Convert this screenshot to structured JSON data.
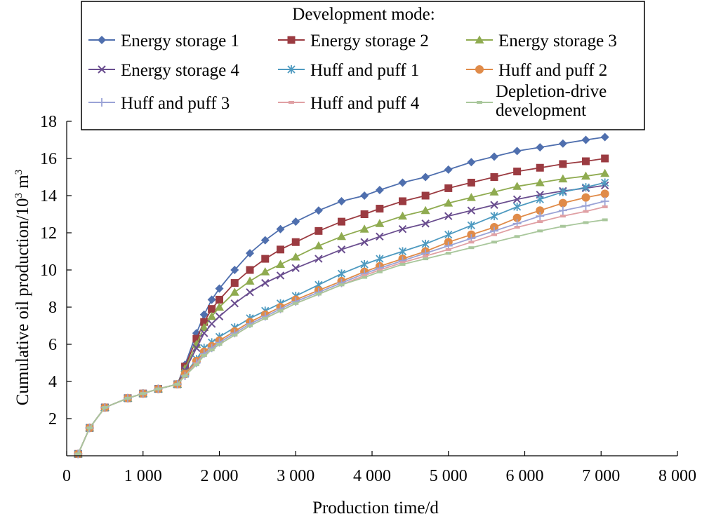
{
  "chart_data": {
    "type": "line",
    "xlabel": "Production time/d",
    "ylabel_main": "Cumulative oil production/10",
    "ylabel_sup": "3",
    "ylabel_tail": " m",
    "ylabel_sup2": "3",
    "xlim": [
      0,
      8000
    ],
    "ylim": [
      0,
      18
    ],
    "x_ticks": [
      0,
      1000,
      2000,
      3000,
      4000,
      5000,
      6000,
      7000,
      8000
    ],
    "x_tick_labels": [
      "0",
      "1 000",
      "2 000",
      "3 000",
      "4 000",
      "5 000",
      "6 000",
      "7 000",
      "8 000"
    ],
    "y_ticks": [
      2,
      4,
      6,
      8,
      10,
      12,
      14,
      16,
      18
    ],
    "y_tick_labels": [
      "2",
      "4",
      "6",
      "8",
      "10",
      "12",
      "14",
      "16",
      "18"
    ],
    "grid": false,
    "legend_title": "Development mode:",
    "legend_placement": "top",
    "series": [
      {
        "name": "Energy storage 1",
        "color": "#4F6FAE",
        "marker": "diamond",
        "x": [
          150,
          300,
          500,
          800,
          1000,
          1200,
          1450,
          1550,
          1700,
          1800,
          1900,
          2000,
          2200,
          2400,
          2600,
          2800,
          3000,
          3300,
          3600,
          3900,
          4100,
          4400,
          4700,
          5000,
          5300,
          5600,
          5900,
          6200,
          6500,
          6800,
          7050
        ],
        "y": [
          0.1,
          1.5,
          2.6,
          3.1,
          3.35,
          3.6,
          3.85,
          4.9,
          6.6,
          7.6,
          8.4,
          9.0,
          10.0,
          10.9,
          11.6,
          12.2,
          12.6,
          13.2,
          13.7,
          14.0,
          14.3,
          14.7,
          15.0,
          15.4,
          15.8,
          16.1,
          16.4,
          16.6,
          16.8,
          17.0,
          17.15
        ]
      },
      {
        "name": "Energy storage 2",
        "color": "#9B3B41",
        "marker": "square",
        "x": [
          150,
          300,
          500,
          800,
          1000,
          1200,
          1450,
          1550,
          1700,
          1800,
          1900,
          2000,
          2200,
          2400,
          2600,
          2800,
          3000,
          3300,
          3600,
          3900,
          4100,
          4400,
          4700,
          5000,
          5300,
          5600,
          5900,
          6200,
          6500,
          6800,
          7050
        ],
        "y": [
          0.1,
          1.5,
          2.6,
          3.1,
          3.35,
          3.6,
          3.85,
          4.8,
          6.3,
          7.2,
          7.9,
          8.4,
          9.3,
          10.0,
          10.6,
          11.1,
          11.5,
          12.1,
          12.6,
          13.0,
          13.3,
          13.7,
          14.0,
          14.4,
          14.7,
          15.0,
          15.3,
          15.5,
          15.7,
          15.85,
          16.0
        ]
      },
      {
        "name": "Energy storage 3",
        "color": "#8FAB50",
        "marker": "triangle",
        "x": [
          150,
          300,
          500,
          800,
          1000,
          1200,
          1450,
          1550,
          1700,
          1800,
          1900,
          2000,
          2200,
          2400,
          2600,
          2800,
          3000,
          3300,
          3600,
          3900,
          4100,
          4400,
          4700,
          5000,
          5300,
          5600,
          5900,
          6200,
          6500,
          6800,
          7050
        ],
        "y": [
          0.1,
          1.5,
          2.6,
          3.1,
          3.35,
          3.6,
          3.85,
          4.7,
          6.0,
          6.9,
          7.5,
          8.0,
          8.8,
          9.4,
          9.9,
          10.3,
          10.7,
          11.3,
          11.8,
          12.2,
          12.5,
          12.9,
          13.2,
          13.6,
          13.9,
          14.2,
          14.5,
          14.7,
          14.9,
          15.05,
          15.2
        ]
      },
      {
        "name": "Energy storage 4",
        "color": "#6A4E8F",
        "marker": "x",
        "x": [
          150,
          300,
          500,
          800,
          1000,
          1200,
          1450,
          1550,
          1700,
          1800,
          1900,
          2000,
          2200,
          2400,
          2600,
          2800,
          3000,
          3300,
          3600,
          3900,
          4100,
          4400,
          4700,
          5000,
          5300,
          5600,
          5900,
          6200,
          6500,
          6800,
          7050
        ],
        "y": [
          0.1,
          1.5,
          2.6,
          3.1,
          3.35,
          3.6,
          3.85,
          4.6,
          5.8,
          6.6,
          7.1,
          7.5,
          8.2,
          8.8,
          9.3,
          9.7,
          10.1,
          10.6,
          11.1,
          11.5,
          11.8,
          12.2,
          12.5,
          12.9,
          13.2,
          13.5,
          13.8,
          14.05,
          14.25,
          14.4,
          14.55
        ]
      },
      {
        "name": "Huff and puff 1",
        "color": "#4E9AC0",
        "marker": "asterisk",
        "x": [
          150,
          300,
          500,
          800,
          1000,
          1200,
          1450,
          1550,
          1700,
          1800,
          1900,
          2000,
          2200,
          2400,
          2600,
          2800,
          3000,
          3300,
          3600,
          3900,
          4100,
          4400,
          4700,
          5000,
          5300,
          5600,
          5900,
          6200,
          6500,
          6800,
          7050
        ],
        "y": [
          0.1,
          1.5,
          2.6,
          3.1,
          3.35,
          3.6,
          3.85,
          4.4,
          5.2,
          5.8,
          6.1,
          6.4,
          6.9,
          7.4,
          7.8,
          8.2,
          8.6,
          9.2,
          9.8,
          10.3,
          10.6,
          11.0,
          11.4,
          11.9,
          12.4,
          12.9,
          13.4,
          13.8,
          14.2,
          14.45,
          14.7
        ]
      },
      {
        "name": "Huff and puff 2",
        "color": "#E08B49",
        "marker": "circle",
        "x": [
          150,
          300,
          500,
          800,
          1000,
          1200,
          1450,
          1550,
          1700,
          1800,
          1900,
          2000,
          2200,
          2400,
          2600,
          2800,
          3000,
          3300,
          3600,
          3900,
          4100,
          4400,
          4700,
          5000,
          5300,
          5600,
          5900,
          6200,
          6500,
          6800,
          7050
        ],
        "y": [
          0.1,
          1.5,
          2.6,
          3.1,
          3.35,
          3.6,
          3.85,
          4.4,
          5.1,
          5.6,
          5.9,
          6.2,
          6.7,
          7.2,
          7.6,
          8.0,
          8.4,
          8.9,
          9.4,
          9.9,
          10.2,
          10.6,
          11.0,
          11.5,
          11.9,
          12.3,
          12.8,
          13.2,
          13.6,
          13.9,
          14.1
        ]
      },
      {
        "name": "Huff and puff 3",
        "color": "#9AA3D6",
        "marker": "plus",
        "x": [
          150,
          300,
          500,
          800,
          1000,
          1200,
          1450,
          1550,
          1700,
          1800,
          1900,
          2000,
          2200,
          2400,
          2600,
          2800,
          3000,
          3300,
          3600,
          3900,
          4100,
          4400,
          4700,
          5000,
          5300,
          5600,
          5900,
          6200,
          6500,
          6800,
          7050
        ],
        "y": [
          0.1,
          1.5,
          2.6,
          3.1,
          3.35,
          3.6,
          3.85,
          4.3,
          5.0,
          5.5,
          5.8,
          6.1,
          6.6,
          7.1,
          7.5,
          7.9,
          8.3,
          8.8,
          9.3,
          9.8,
          10.1,
          10.5,
          10.9,
          11.3,
          11.7,
          12.1,
          12.5,
          12.9,
          13.2,
          13.45,
          13.7
        ]
      },
      {
        "name": "Huff and puff 4",
        "color": "#E0A0A4",
        "marker": "dash",
        "x": [
          150,
          300,
          500,
          800,
          1000,
          1200,
          1450,
          1550,
          1700,
          1800,
          1900,
          2000,
          2200,
          2400,
          2600,
          2800,
          3000,
          3300,
          3600,
          3900,
          4100,
          4400,
          4700,
          5000,
          5300,
          5600,
          5900,
          6200,
          6500,
          6800,
          7050
        ],
        "y": [
          0.1,
          1.5,
          2.6,
          3.1,
          3.35,
          3.6,
          3.85,
          4.3,
          4.95,
          5.4,
          5.7,
          6.0,
          6.5,
          7.0,
          7.4,
          7.8,
          8.2,
          8.7,
          9.2,
          9.7,
          10.0,
          10.4,
          10.75,
          11.1,
          11.5,
          11.9,
          12.3,
          12.6,
          12.9,
          13.15,
          13.4
        ]
      },
      {
        "name": "Depletion-drive development",
        "name_lines": [
          "Depletion-drive",
          "development"
        ],
        "color": "#A9C79C",
        "marker": "dash",
        "x": [
          150,
          300,
          500,
          800,
          1000,
          1200,
          1450,
          1550,
          1700,
          1800,
          1900,
          2000,
          2200,
          2400,
          2600,
          2800,
          3000,
          3300,
          3600,
          3900,
          4100,
          4400,
          4700,
          5000,
          5300,
          5600,
          5900,
          6200,
          6500,
          6800,
          7050
        ],
        "y": [
          0.1,
          1.5,
          2.6,
          3.1,
          3.35,
          3.6,
          3.85,
          4.3,
          4.9,
          5.4,
          5.7,
          6.0,
          6.5,
          7.0,
          7.4,
          7.8,
          8.2,
          8.7,
          9.2,
          9.6,
          9.9,
          10.3,
          10.6,
          10.9,
          11.2,
          11.5,
          11.8,
          12.1,
          12.35,
          12.55,
          12.7
        ]
      }
    ]
  }
}
